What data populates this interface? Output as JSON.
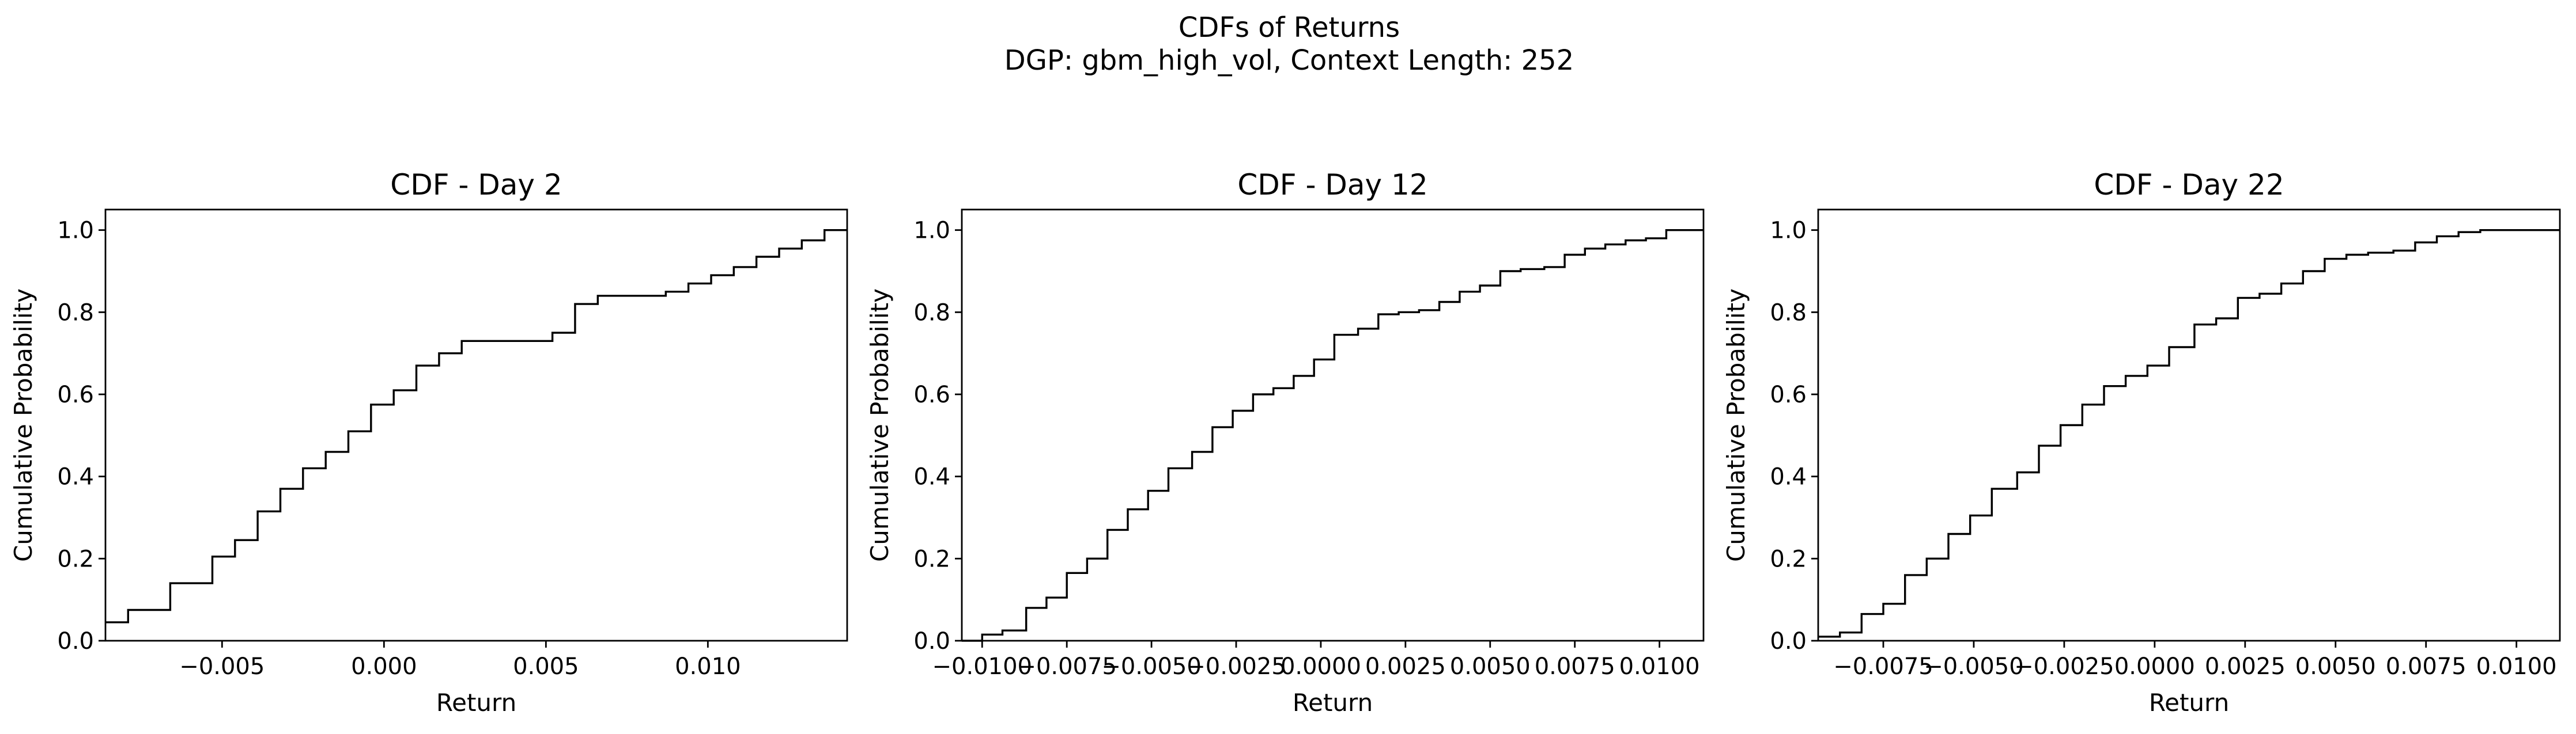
{
  "figure": {
    "title_line1": "CDFs of Returns",
    "title_line2": "DGP: gbm_high_vol, Context Length: 252"
  },
  "chart_data": [
    {
      "type": "line",
      "step": true,
      "title": "CDF - Day 2",
      "xlabel": "Return",
      "ylabel": "Cumulative Probability",
      "xlim": [
        -0.0086,
        0.0143
      ],
      "ylim": [
        0.0,
        1.05
      ],
      "xticks": [
        -0.005,
        0.0,
        0.005,
        0.01
      ],
      "xtick_labels": [
        "−0.005",
        "0.000",
        "0.005",
        "0.010"
      ],
      "yticks": [
        0.0,
        0.2,
        0.4,
        0.6,
        0.8,
        1.0
      ],
      "ytick_labels": [
        "0.0",
        "0.2",
        "0.4",
        "0.6",
        "0.8",
        "1.0"
      ],
      "grid": false,
      "color": "#000000",
      "x": [
        -0.0086,
        -0.0079,
        -0.0066,
        -0.0053,
        -0.0046,
        -0.0039,
        -0.0032,
        -0.0025,
        -0.0018,
        -0.0011,
        -0.0004,
        0.0003,
        0.001,
        0.0017,
        0.0024,
        0.0031,
        0.0038,
        0.0045,
        0.0052,
        0.0059,
        0.0066,
        0.0073,
        0.0087,
        0.0094,
        0.0101,
        0.0108,
        0.0115,
        0.0122,
        0.0129,
        0.0136,
        0.0143
      ],
      "y": [
        0.045,
        0.075,
        0.14,
        0.205,
        0.245,
        0.315,
        0.37,
        0.42,
        0.46,
        0.51,
        0.575,
        0.61,
        0.67,
        0.7,
        0.73,
        0.73,
        0.73,
        0.73,
        0.75,
        0.82,
        0.84,
        0.84,
        0.85,
        0.87,
        0.89,
        0.91,
        0.935,
        0.955,
        0.975,
        1.0,
        1.0
      ]
    },
    {
      "type": "line",
      "step": true,
      "title": "CDF - Day 12",
      "xlabel": "Return",
      "ylabel": "Cumulative Probability",
      "xlim": [
        -0.0106,
        0.0113
      ],
      "ylim": [
        0.0,
        1.05
      ],
      "xticks": [
        -0.01,
        -0.0075,
        -0.005,
        -0.0025,
        0.0,
        0.0025,
        0.005,
        0.0075,
        0.01
      ],
      "xtick_labels": [
        "−0.0100",
        "−0.0075",
        "−0.0050",
        "−0.0025",
        "0.0000",
        "0.0025",
        "0.0050",
        "0.0075",
        "0.0100"
      ],
      "yticks": [
        0.0,
        0.2,
        0.4,
        0.6,
        0.8,
        1.0
      ],
      "ytick_labels": [
        "0.0",
        "0.2",
        "0.4",
        "0.6",
        "0.8",
        "1.0"
      ],
      "grid": false,
      "color": "#000000",
      "x": [
        -0.0106,
        -0.01,
        -0.0094,
        -0.0087,
        -0.0081,
        -0.0075,
        -0.0069,
        -0.0063,
        -0.0057,
        -0.0051,
        -0.0045,
        -0.0038,
        -0.0032,
        -0.0026,
        -0.002,
        -0.0014,
        -0.0008,
        -0.0002,
        0.0004,
        0.0011,
        0.0017,
        0.0023,
        0.0029,
        0.0035,
        0.0041,
        0.0047,
        0.0053,
        0.0059,
        0.0066,
        0.0072,
        0.0078,
        0.0084,
        0.009,
        0.0096,
        0.0102,
        0.0108,
        0.0113
      ],
      "y": [
        0.0,
        0.015,
        0.025,
        0.08,
        0.105,
        0.165,
        0.2,
        0.27,
        0.32,
        0.365,
        0.42,
        0.46,
        0.52,
        0.56,
        0.6,
        0.615,
        0.645,
        0.685,
        0.745,
        0.76,
        0.795,
        0.8,
        0.805,
        0.825,
        0.85,
        0.865,
        0.9,
        0.905,
        0.91,
        0.94,
        0.955,
        0.965,
        0.975,
        0.98,
        1.0,
        1.0,
        1.0
      ]
    },
    {
      "type": "line",
      "step": true,
      "title": "CDF - Day 22",
      "xlabel": "Return",
      "ylabel": "Cumulative Probability",
      "xlim": [
        -0.0093,
        0.0112
      ],
      "ylim": [
        0.0,
        1.05
      ],
      "xticks": [
        -0.0075,
        -0.005,
        -0.0025,
        0.0,
        0.0025,
        0.005,
        0.0075,
        0.01
      ],
      "xtick_labels": [
        "−0.0075",
        "−0.0050",
        "−0.0025",
        "0.0000",
        "0.0025",
        "0.0050",
        "0.0075",
        "0.0100"
      ],
      "yticks": [
        0.0,
        0.2,
        0.4,
        0.6,
        0.8,
        1.0
      ],
      "ytick_labels": [
        "0.0",
        "0.2",
        "0.4",
        "0.6",
        "0.8",
        "1.0"
      ],
      "grid": false,
      "color": "#000000",
      "x": [
        -0.0093,
        -0.0087,
        -0.0081,
        -0.0075,
        -0.0069,
        -0.0063,
        -0.0057,
        -0.0051,
        -0.0045,
        -0.0038,
        -0.0032,
        -0.0026,
        -0.002,
        -0.0014,
        -0.0008,
        -0.0002,
        0.0004,
        0.0011,
        0.0017,
        0.0023,
        0.0029,
        0.0035,
        0.0041,
        0.0047,
        0.0053,
        0.0059,
        0.0066,
        0.0072,
        0.0078,
        0.0084,
        0.009,
        0.0096,
        0.0102,
        0.0108,
        0.0112
      ],
      "y": [
        0.01,
        0.02,
        0.065,
        0.09,
        0.16,
        0.2,
        0.26,
        0.305,
        0.37,
        0.41,
        0.475,
        0.525,
        0.575,
        0.62,
        0.645,
        0.67,
        0.715,
        0.77,
        0.785,
        0.835,
        0.845,
        0.87,
        0.9,
        0.93,
        0.94,
        0.945,
        0.95,
        0.97,
        0.985,
        0.995,
        1.0,
        1.0,
        1.0,
        1.0,
        1.0
      ]
    }
  ]
}
